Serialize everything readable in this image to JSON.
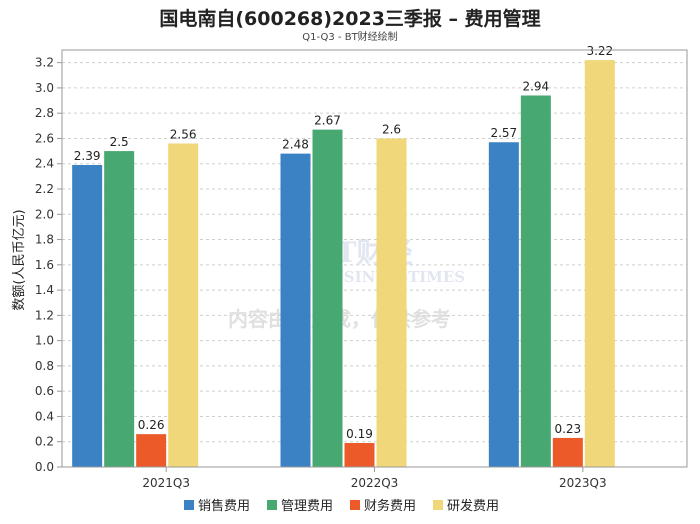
{
  "chart_data": {
    "type": "bar",
    "title": "国电南自(600268)2023三季报 – 费用管理",
    "subtitle": "Q1-Q3 - BT财经绘制",
    "ylabel": "数额(人民币亿元)",
    "xlabel": "",
    "ylim": [
      0,
      3.3
    ],
    "yticks": [
      "0.0",
      "0.2",
      "0.4",
      "0.6",
      "0.8",
      "1.0",
      "1.2",
      "1.4",
      "1.6",
      "1.8",
      "2.0",
      "2.2",
      "2.4",
      "2.6",
      "2.8",
      "3.0",
      "3.2"
    ],
    "categories": [
      "2021Q3",
      "2022Q3",
      "2023Q3"
    ],
    "series": [
      {
        "name": "销售费用",
        "color": "#3a82c4",
        "values": [
          2.39,
          2.48,
          2.57
        ],
        "labels": [
          "2.39",
          "2.48",
          "2.57"
        ]
      },
      {
        "name": "管理费用",
        "color": "#48a871",
        "values": [
          2.5,
          2.67,
          2.94
        ],
        "labels": [
          "2.5",
          "2.67",
          "2.94"
        ]
      },
      {
        "name": "财务费用",
        "color": "#ec5a2a",
        "values": [
          0.26,
          0.19,
          0.23
        ],
        "labels": [
          "0.26",
          "0.19",
          "0.23"
        ]
      },
      {
        "name": "研发费用",
        "color": "#efd77a",
        "values": [
          2.56,
          2.6,
          3.22
        ],
        "labels": [
          "2.56",
          "2.6",
          "3.22"
        ]
      }
    ],
    "grid": true,
    "legend_position": "bottom"
  },
  "watermark": {
    "logo": "BT财经",
    "sub": "BUSINESSTIMES",
    "note": "内容由AI生成，仅供参考"
  }
}
